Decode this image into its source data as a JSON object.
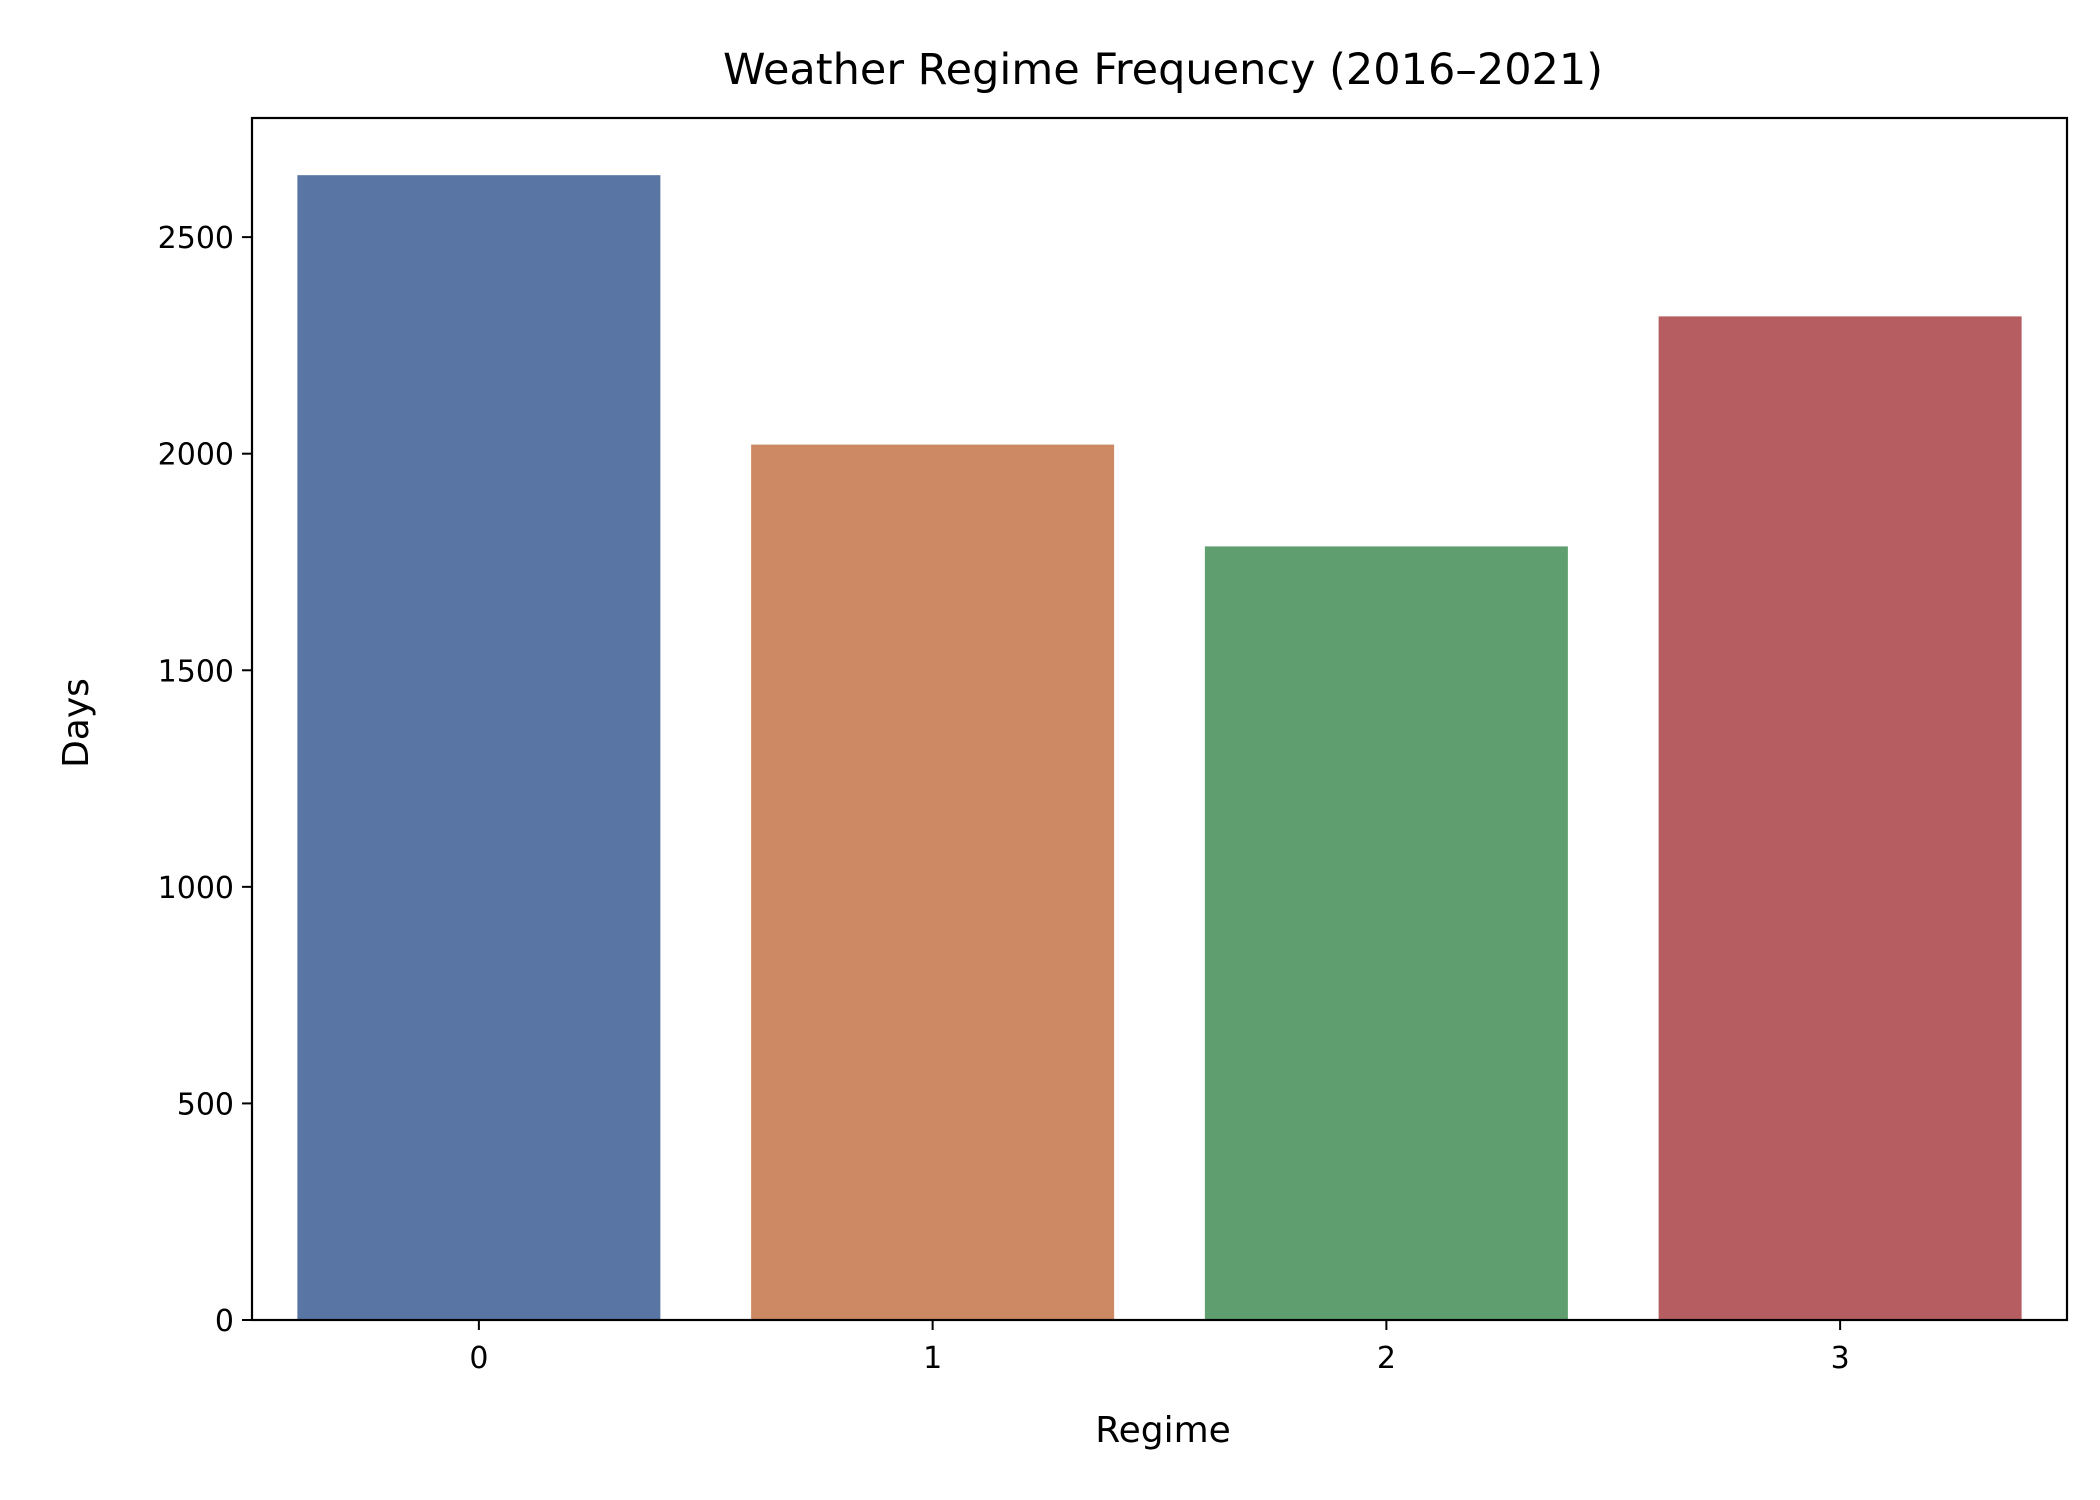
{
  "chart_data": {
    "type": "bar",
    "title": "Weather Regime Frequency (2016–2021)",
    "xlabel": "Regime",
    "ylabel": "Days",
    "categories": [
      "0",
      "1",
      "2",
      "3"
    ],
    "values": [
      2643,
      2021,
      1786,
      2317
    ],
    "ylim": [
      0,
      2775
    ],
    "yticks": [
      0,
      500,
      1000,
      1500,
      2000,
      2500
    ],
    "grid": false,
    "colors": [
      "#5975a4",
      "#cc8963",
      "#5f9e6e",
      "#b55d60"
    ]
  }
}
